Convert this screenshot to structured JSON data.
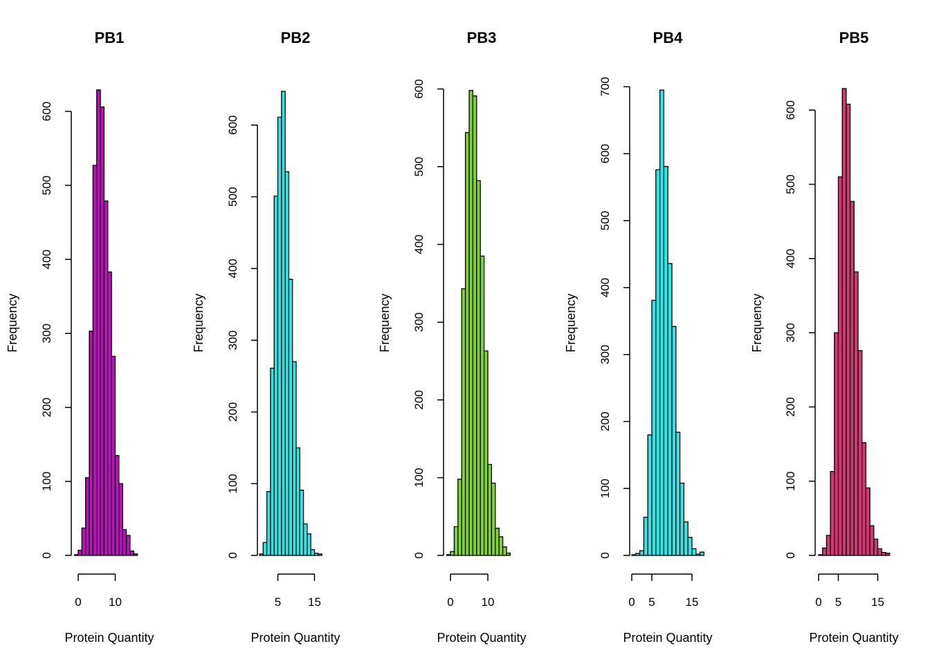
{
  "chart_data": [
    {
      "type": "bar",
      "title": "PB1",
      "xlabel": "Protein Quantity",
      "ylabel": "Frequency",
      "color": "#BD0FBD",
      "bin_width": 1,
      "bin_start": -1,
      "values": [
        1,
        7,
        37,
        105,
        303,
        527,
        629,
        606,
        479,
        383,
        269,
        135,
        97,
        35,
        27,
        6,
        2
      ],
      "xticks": [
        0,
        10
      ],
      "xlim": [
        0,
        10
      ],
      "yticks": [
        0,
        100,
        200,
        300,
        400,
        500,
        600
      ],
      "ylim": [
        0,
        600
      ]
    },
    {
      "type": "bar",
      "title": "PB2",
      "xlabel": "Protein Quantity",
      "ylabel": "Frequency",
      "color": "#2AE6E6",
      "bin_width": 1,
      "bin_start": 0,
      "values": [
        2,
        18,
        89,
        261,
        501,
        611,
        647,
        535,
        385,
        270,
        150,
        91,
        44,
        30,
        8,
        3,
        2
      ],
      "xticks": [
        5,
        15
      ],
      "xlim": [
        5,
        15
      ],
      "yticks": [
        0,
        100,
        200,
        300,
        400,
        500,
        600
      ],
      "ylim": [
        0,
        600
      ]
    },
    {
      "type": "bar",
      "title": "PB3",
      "xlabel": "Protein Quantity",
      "ylabel": "Frequency",
      "color": "#7FD32A",
      "bin_width": 1,
      "bin_start": -1,
      "values": [
        1,
        5,
        37,
        98,
        343,
        544,
        598,
        591,
        482,
        385,
        263,
        117,
        93,
        35,
        24,
        11,
        3
      ],
      "xticks": [
        0,
        10
      ],
      "xlim": [
        0,
        10
      ],
      "yticks": [
        0,
        100,
        200,
        300,
        400,
        500,
        600
      ],
      "ylim": [
        0,
        600
      ]
    },
    {
      "type": "bar",
      "title": "PB4",
      "xlabel": "Protein Quantity",
      "ylabel": "Frequency",
      "color": "#2AE6E6",
      "bin_width": 1,
      "bin_start": 0,
      "values": [
        1,
        3,
        7,
        57,
        180,
        381,
        576,
        695,
        581,
        436,
        342,
        184,
        108,
        50,
        27,
        10,
        2,
        5
      ],
      "xticks": [
        0,
        5,
        15
      ],
      "xlim": [
        0,
        15
      ],
      "yticks": [
        0,
        100,
        200,
        300,
        400,
        500,
        600,
        700
      ],
      "ylim": [
        0,
        700
      ]
    },
    {
      "type": "bar",
      "title": "PB5",
      "xlabel": "Protein Quantity",
      "ylabel": "Frequency",
      "color": "#D63774",
      "bin_width": 1,
      "bin_start": 0,
      "values": [
        1,
        10,
        27,
        113,
        300,
        510,
        629,
        608,
        477,
        382,
        276,
        152,
        91,
        40,
        22,
        9,
        4,
        3
      ],
      "xticks": [
        0,
        5,
        15
      ],
      "xlim": [
        0,
        15
      ],
      "yticks": [
        0,
        100,
        200,
        300,
        400,
        500,
        600
      ],
      "ylim": [
        0,
        600
      ]
    }
  ]
}
